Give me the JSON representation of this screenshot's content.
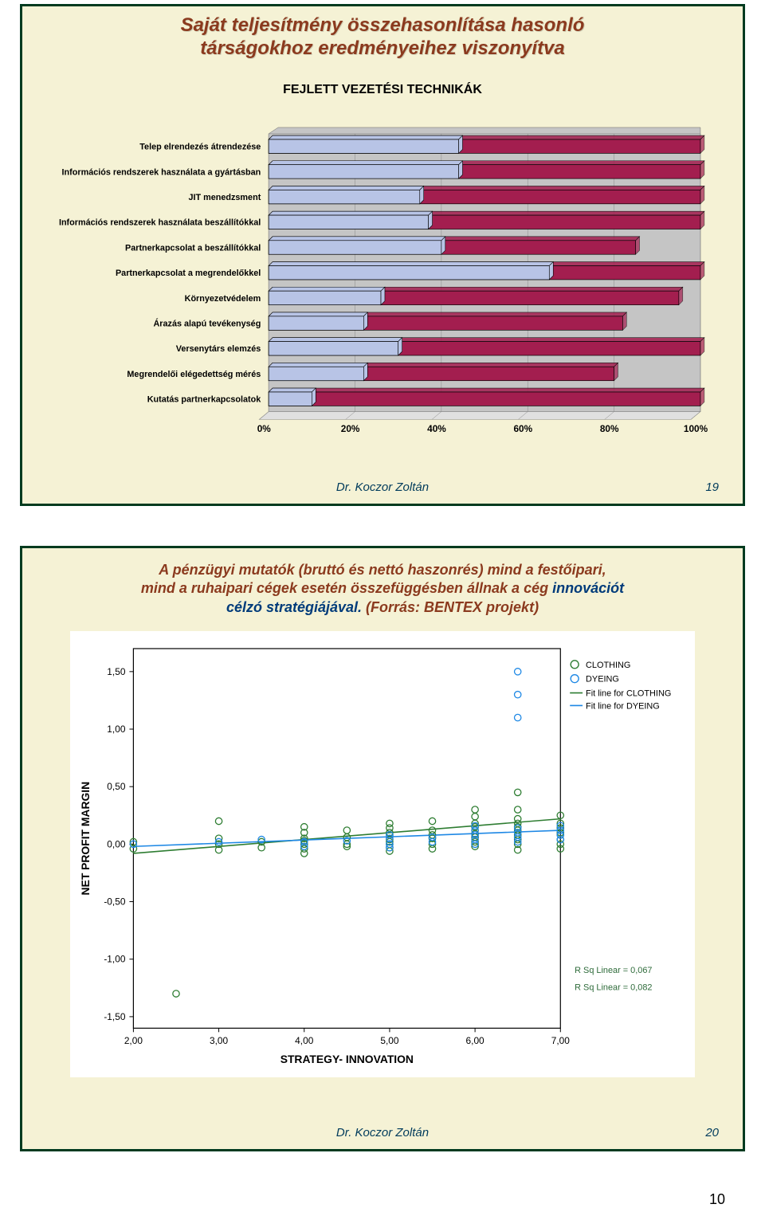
{
  "slide1": {
    "title_l1": "Saját teljesítmény összehasonlítása hasonló",
    "title_l2": "társágokhoz eredményeihez viszonyítva",
    "subtitle": "FEJLETT VEZETÉSI TECHNIKÁK",
    "axis_ticks": [
      "0%",
      "20%",
      "40%",
      "60%",
      "80%",
      "100%"
    ],
    "bars": [
      {
        "label": "Telep elrendezés átrendezése",
        "inner": 44,
        "outer": 100
      },
      {
        "label": "Információs rendszerek használata a gyártásban",
        "inner": 44,
        "outer": 100
      },
      {
        "label": "JIT menedzsment",
        "inner": 35,
        "outer": 100
      },
      {
        "label": "Információs rendszerek használata beszállítókkal",
        "inner": 37,
        "outer": 100
      },
      {
        "label": "Partnerkapcsolat a beszállítókkal",
        "inner": 40,
        "outer": 85
      },
      {
        "label": "Partnerkapcsolat a megrendelőkkel",
        "inner": 65,
        "outer": 100
      },
      {
        "label": "Környezetvédelem",
        "inner": 26,
        "outer": 95
      },
      {
        "label": "Árazás alapú tevékenység",
        "inner": 22,
        "outer": 82
      },
      {
        "label": "Versenytárs elemzés",
        "inner": 30,
        "outer": 100
      },
      {
        "label": "Megrendelői elégedettség mérés",
        "inner": 22,
        "outer": 80
      },
      {
        "label": "Kutatás partnerkapcsolatok",
        "inner": 10,
        "outer": 100
      }
    ],
    "chart_colors": {
      "outer_fill": "#a31e4f",
      "inner_fill": "#b8c4e6",
      "stroke": "#000000",
      "plot_bg": "#c5c5c5",
      "base_fill": "#e0e0e0"
    },
    "footer_author": "Dr. Koczor Zoltán",
    "footer_page": "19"
  },
  "slide2": {
    "title_part1": "A pénzügyi mutatók (bruttó és nettó haszonrés) mind a festőipari,",
    "title_part2a": "mind a ruhaipari cégek esetén összefüggésben állnak a cég ",
    "title_part2b": "innovációt",
    "title_part3": "célzó stratégiájával.",
    "title_part4": " (Forrás: BENTEX projekt)",
    "scatter": {
      "ylabel": "NET PROFIT MARGIN",
      "xlabel": "STRATEGY- INNOVATION",
      "xlim": [
        2.0,
        7.0
      ],
      "ylim": [
        -1.6,
        1.7
      ],
      "xticks": [
        "2,00",
        "3,00",
        "4,00",
        "5,00",
        "6,00",
        "7,00"
      ],
      "yticks": [
        {
          "v": -1.5,
          "t": "-1,50"
        },
        {
          "v": -1.0,
          "t": "-1,00"
        },
        {
          "v": -0.5,
          "t": "-0,50"
        },
        {
          "v": 0.0,
          "t": "0,00"
        },
        {
          "v": 0.5,
          "t": "0,50"
        },
        {
          "v": 1.0,
          "t": "1,00"
        },
        {
          "v": 1.5,
          "t": "1,50"
        }
      ],
      "legend": [
        "CLOTHING",
        "DYEING",
        "Fit line for CLOTHING",
        "Fit line for DYEING"
      ],
      "rsq": [
        "R Sq Linear = 0,067",
        "R Sq Linear = 0,082"
      ],
      "colors": {
        "clothing": "#2e7d32",
        "dyeing": "#1e88e5",
        "fit_clothing": "#2e7d32",
        "fit_dyeing": "#1e88e5",
        "marker_stroke_width": 1.3,
        "axis": "#000000",
        "bg": "#ffffff"
      },
      "fit_lines": {
        "clothing": {
          "x1": 2.0,
          "y1": -0.08,
          "x2": 7.0,
          "y2": 0.22
        },
        "dyeing": {
          "x1": 2.0,
          "y1": -0.02,
          "x2": 7.0,
          "y2": 0.12
        }
      },
      "points_clothing": [
        [
          2.0,
          0.02
        ],
        [
          2.0,
          -0.04
        ],
        [
          2.5,
          -1.3
        ],
        [
          3.0,
          0.05
        ],
        [
          3.0,
          0.0
        ],
        [
          3.0,
          -0.05
        ],
        [
          3.0,
          0.2
        ],
        [
          3.5,
          0.02
        ],
        [
          3.5,
          -0.03
        ],
        [
          4.0,
          0.05
        ],
        [
          4.0,
          0.0
        ],
        [
          4.0,
          -0.04
        ],
        [
          4.0,
          0.1
        ],
        [
          4.0,
          0.15
        ],
        [
          4.0,
          0.03
        ],
        [
          4.0,
          -0.08
        ],
        [
          4.5,
          0.06
        ],
        [
          4.5,
          0.0
        ],
        [
          4.5,
          -0.02
        ],
        [
          4.5,
          0.12
        ],
        [
          5.0,
          0.04
        ],
        [
          5.0,
          0.0
        ],
        [
          5.0,
          -0.03
        ],
        [
          5.0,
          0.08
        ],
        [
          5.0,
          0.14
        ],
        [
          5.0,
          0.18
        ],
        [
          5.0,
          -0.06
        ],
        [
          5.0,
          0.02
        ],
        [
          5.0,
          0.1
        ],
        [
          5.5,
          0.05
        ],
        [
          5.5,
          0.12
        ],
        [
          5.5,
          0.0
        ],
        [
          5.5,
          -0.04
        ],
        [
          5.5,
          0.2
        ],
        [
          5.5,
          0.08
        ],
        [
          6.0,
          0.06
        ],
        [
          6.0,
          0.12
        ],
        [
          6.0,
          0.18
        ],
        [
          6.0,
          0.02
        ],
        [
          6.0,
          -0.02
        ],
        [
          6.0,
          0.24
        ],
        [
          6.0,
          0.3
        ],
        [
          6.0,
          0.09
        ],
        [
          6.0,
          0.15
        ],
        [
          6.0,
          0.0
        ],
        [
          6.5,
          0.08
        ],
        [
          6.5,
          0.15
        ],
        [
          6.5,
          0.22
        ],
        [
          6.5,
          0.3
        ],
        [
          6.5,
          0.04
        ],
        [
          6.5,
          0.45
        ],
        [
          6.5,
          0.12
        ],
        [
          6.5,
          0.18
        ],
        [
          6.5,
          0.0
        ],
        [
          6.5,
          -0.05
        ],
        [
          7.0,
          0.1
        ],
        [
          7.0,
          0.18
        ],
        [
          7.0,
          0.04
        ],
        [
          7.0,
          0.25
        ],
        [
          7.0,
          0.0
        ],
        [
          7.0,
          0.14
        ],
        [
          7.0,
          0.08
        ],
        [
          7.0,
          -0.04
        ]
      ],
      "points_dyeing": [
        [
          2.0,
          0.0
        ],
        [
          3.0,
          0.02
        ],
        [
          3.5,
          0.04
        ],
        [
          4.0,
          0.02
        ],
        [
          4.0,
          -0.02
        ],
        [
          4.5,
          0.03
        ],
        [
          5.0,
          0.05
        ],
        [
          5.0,
          0.0
        ],
        [
          5.0,
          0.08
        ],
        [
          5.0,
          -0.03
        ],
        [
          5.5,
          0.06
        ],
        [
          5.5,
          0.02
        ],
        [
          6.0,
          0.08
        ],
        [
          6.0,
          0.04
        ],
        [
          6.0,
          0.12
        ],
        [
          6.0,
          0.0
        ],
        [
          6.0,
          0.16
        ],
        [
          6.5,
          0.1
        ],
        [
          6.5,
          0.06
        ],
        [
          6.5,
          0.14
        ],
        [
          6.5,
          0.02
        ],
        [
          6.5,
          1.1
        ],
        [
          6.5,
          1.3
        ],
        [
          6.5,
          1.5
        ],
        [
          7.0,
          0.08
        ],
        [
          7.0,
          0.12
        ],
        [
          7.0,
          0.04
        ],
        [
          7.0,
          0.16
        ]
      ]
    },
    "footer_author": "Dr. Koczor Zoltán",
    "footer_page": "20"
  },
  "doc_page": "10"
}
